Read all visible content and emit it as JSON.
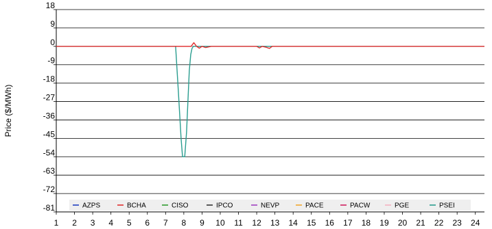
{
  "chart_data": {
    "type": "line",
    "title": "",
    "xlabel": "",
    "ylabel": "Price ($/MWh)",
    "xlim": [
      1,
      24.5
    ],
    "ylim": [
      -81,
      18
    ],
    "x_ticks": [
      1,
      2,
      3,
      4,
      5,
      6,
      7,
      8,
      9,
      10,
      11,
      12,
      13,
      14,
      15,
      16,
      17,
      18,
      19,
      20,
      21,
      22,
      23,
      24
    ],
    "y_ticks": [
      18,
      9,
      0,
      -9,
      -18,
      -27,
      -36,
      -45,
      -54,
      -63,
      -72,
      -81
    ],
    "grid": "horizontal",
    "legend": {
      "placement": "bottom-inside"
    },
    "series": [
      {
        "name": "AZPS",
        "color": "#1f3fbf",
        "x": [
          1,
          24.5
        ],
        "y": [
          0,
          0
        ]
      },
      {
        "name": "BCHA",
        "color": "#e03030",
        "x": [
          1,
          8.0,
          8.4,
          8.55,
          8.7,
          8.85,
          9.0,
          9.2,
          9.5,
          12,
          12.15,
          12.3,
          12.5,
          12.7,
          12.85,
          13,
          24.5
        ],
        "y": [
          0,
          0,
          0,
          1.8,
          0,
          -0.9,
          0,
          -0.6,
          0,
          0,
          -0.8,
          0,
          -0.4,
          -1.0,
          0,
          0,
          0
        ]
      },
      {
        "name": "CISO",
        "color": "#2f9a2f",
        "x": [
          1,
          24.5
        ],
        "y": [
          0,
          0
        ]
      },
      {
        "name": "IPCO",
        "color": "#333333",
        "x": [
          1,
          24.5
        ],
        "y": [
          0,
          0
        ]
      },
      {
        "name": "NEVP",
        "color": "#a040c0",
        "x": [
          1,
          24.5
        ],
        "y": [
          0,
          0
        ]
      },
      {
        "name": "PACE",
        "color": "#f0a830",
        "x": [
          1,
          24.5
        ],
        "y": [
          0,
          0
        ]
      },
      {
        "name": "PACW",
        "color": "#d02060",
        "x": [
          1,
          24.5
        ],
        "y": [
          0,
          0
        ]
      },
      {
        "name": "PGE",
        "color": "#f4b0c0",
        "x": [
          1,
          24.5
        ],
        "y": [
          0,
          0
        ]
      },
      {
        "name": "PSEI",
        "color": "#2a9d8f",
        "x": [
          1,
          7.55,
          7.7,
          7.85,
          7.93,
          8.05,
          8.15,
          8.22,
          8.3,
          8.38,
          8.45,
          8.52,
          24.5
        ],
        "y": [
          0,
          0,
          -22,
          -45,
          -54,
          -54,
          -42,
          -28,
          -12,
          -4,
          -1,
          0,
          0
        ]
      }
    ]
  }
}
